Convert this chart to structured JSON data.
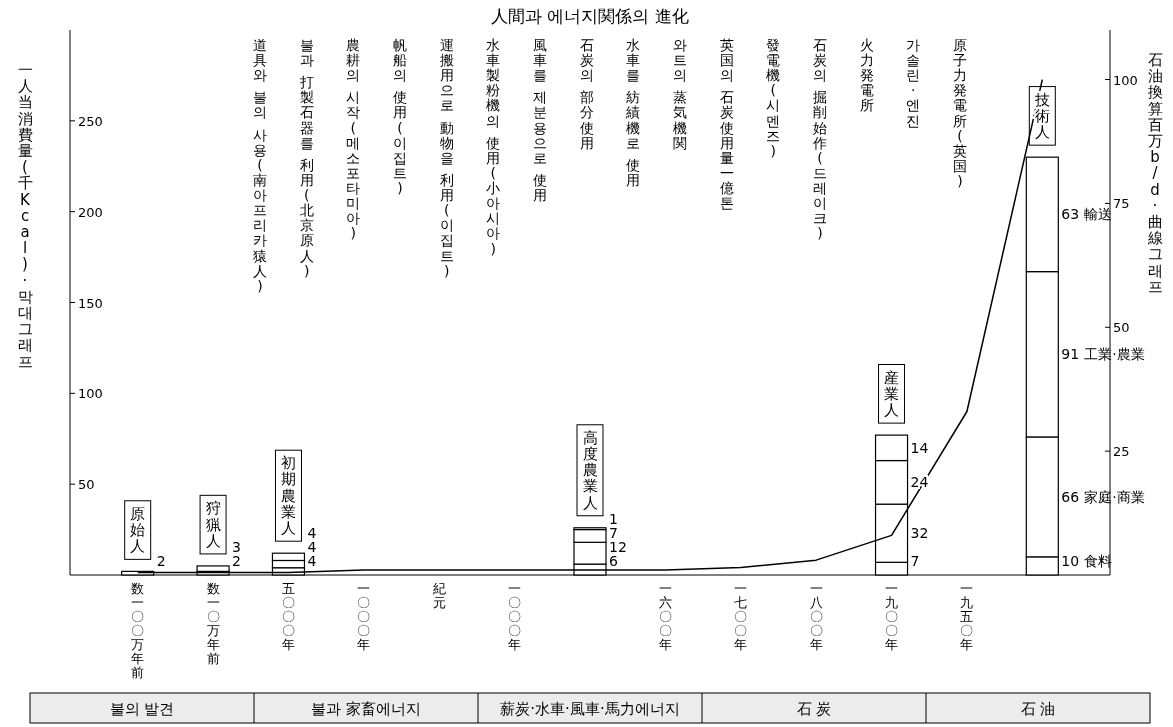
{
  "chart_data": {
    "type": "bar",
    "stacked": true,
    "title": "人間과 에너지関係의 進化",
    "ylabel": "一人当消費量(千Kcal)·막대그래프",
    "y2label": "石油換算百万b/d·曲線그래프",
    "categories": [
      "数一〇〇万年前",
      "数一〇万年前",
      "五〇〇〇年",
      "一〇〇〇年",
      "紀元",
      "一〇〇〇年",
      null,
      "一六〇〇年",
      "一七〇〇年",
      "一八〇〇年",
      "一九〇〇年",
      "一九五〇年",
      null
    ],
    "ylim": [
      0,
      300
    ],
    "yticks": [
      50,
      100,
      150,
      200,
      250
    ],
    "y2lim": [
      0,
      110
    ],
    "y2ticks": [
      25,
      50,
      75,
      100
    ],
    "grid": false,
    "legend": false,
    "series": [
      {
        "name": "食料",
        "color": "#ffffff",
        "values": [
          2,
          2,
          4,
          null,
          null,
          null,
          6,
          null,
          null,
          null,
          7,
          null,
          10
        ],
        "value_labels": [
          "2",
          "2",
          "4",
          null,
          null,
          null,
          "6",
          null,
          null,
          null,
          "7",
          null,
          "10"
        ]
      },
      {
        "name": "家庭·商業",
        "color": "#ffffff",
        "values": [
          null,
          3,
          4,
          null,
          null,
          null,
          12,
          null,
          null,
          null,
          32,
          null,
          66
        ],
        "value_labels": [
          null,
          "3",
          "4",
          null,
          null,
          null,
          "12",
          null,
          null,
          null,
          "32",
          null,
          "66"
        ]
      },
      {
        "name": "工業·農業",
        "color": "#ffffff",
        "values": [
          null,
          null,
          4,
          null,
          null,
          null,
          7,
          null,
          null,
          null,
          24,
          null,
          91
        ],
        "value_labels": [
          null,
          null,
          "4",
          null,
          null,
          null,
          "7",
          null,
          null,
          null,
          "24",
          null,
          "91"
        ]
      },
      {
        "name": "輸送",
        "color": "#ffffff",
        "values": [
          null,
          null,
          null,
          null,
          null,
          null,
          1,
          null,
          null,
          null,
          14,
          null,
          63
        ],
        "value_labels": [
          null,
          null,
          null,
          null,
          null,
          null,
          "1",
          null,
          null,
          null,
          "14",
          null,
          "63"
        ]
      },
      {
        "type": "line",
        "axis": "y2",
        "color": "#000000",
        "values": [
          0.5,
          0.5,
          0.5,
          1,
          1,
          1,
          1,
          1,
          1.5,
          3,
          8,
          33,
          100
        ]
      }
    ],
    "annotations": [
      "原始人",
      "狩猟人",
      "初期農業人",
      "高度農業人",
      "産業人",
      "技術人",
      "道具와 불의 사용(南아프리카猿人)",
      "불과 打製石器를 利用(北京原人)",
      "農耕의 시작(메소포타미아)",
      "帆船의 使用(이집트)",
      "運搬用으로 動物을 利用(이집트)",
      "水車製粉機의 使用(小아시아)",
      "風車를 제분용으로 使用",
      "石炭의 部分使用",
      "水車를 紡績機로 使用",
      "와트의 蒸気機関",
      "英国의 石炭使用量一億톤",
      "發電機(시멘즈)",
      "石炭의 掘削始作(드레이크)",
      "火力発電所",
      "가솔린·엔진",
      "原子力発電所(英国)",
      "불의 발견",
      "불과 家畜에너지",
      "薪炭·水車·風車·馬力에너지",
      "石 炭",
      "石 油"
    ]
  }
}
